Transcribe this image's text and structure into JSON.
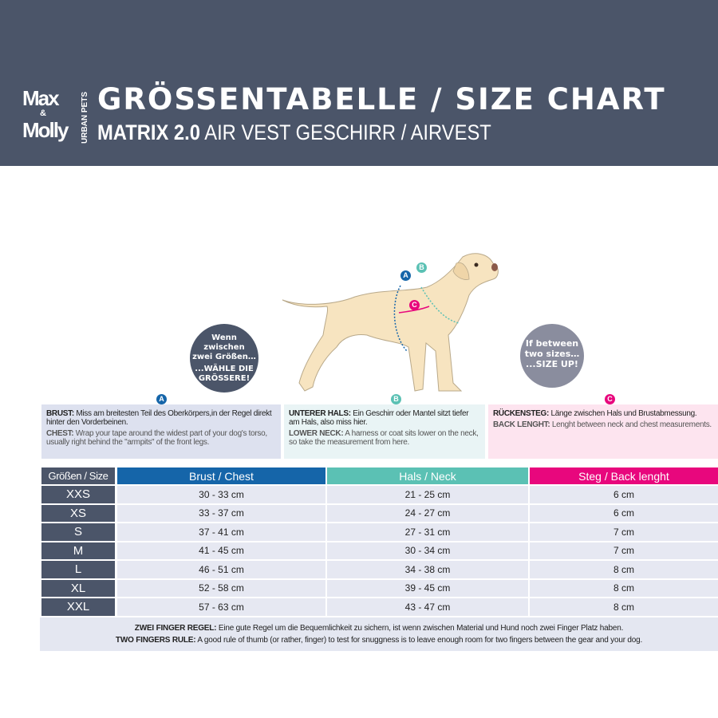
{
  "header": {
    "logo": {
      "line1": "Max",
      "amp": "&",
      "line2": "Molly",
      "tagline": "URBAN PETS"
    },
    "title": "GRÖSSENTABELLE / SIZE CHART",
    "subtitle_bold": "MATRIX 2.0",
    "subtitle_rest": " AIR VEST GESCHIRR / AIRVEST"
  },
  "bubbles": {
    "de": {
      "line1": "Wenn",
      "line2": "zwischen",
      "line3": "zwei Größen…",
      "line4": "...WÄHLE DIE",
      "line5": "GRÖSSERE!"
    },
    "en": {
      "line1": "If between",
      "line2": "two sizes…",
      "line3": "...SIZE UP!"
    }
  },
  "diagram": {
    "labels": [
      "A",
      "B",
      "C"
    ]
  },
  "colors": {
    "header": "#4b5569",
    "chest": "#1565a9",
    "neck": "#5bc1b4",
    "back": "#e8077d",
    "dog": "#f7e4c0"
  },
  "info": [
    {
      "badge": "A",
      "de_label": "BRUST:",
      "de_text": " Miss am breitesten Teil des Oberkörpers,in der Regel direkt hinter den Vorderbeinen.",
      "en_label": "CHEST:",
      "en_text": " Wrap your tape around the widest part of your dog's torso, usually right behind the \"armpits\" of the front legs."
    },
    {
      "badge": "B",
      "de_label": "UNTERER HALS:",
      "de_text": " Ein Geschirr oder Mantel sitzt tiefer am Hals, also miss hier.",
      "en_label": "LOWER NECK:",
      "en_text": " A harness or coat sits lower on the neck, so take the measurement from here."
    },
    {
      "badge": "C",
      "de_label": "RÜCKENSTEG:",
      "de_text": " Länge zwischen Hals und Brustabmessung.",
      "en_label": "BACK LENGHT:",
      "en_text": " Lenght between neck and chest measurements."
    }
  ],
  "table": {
    "headers": [
      "Größen / Size",
      "Brust / Chest",
      "Hals / Neck",
      "Steg / Back lenght"
    ],
    "rows": [
      [
        "XXS",
        "30 - 33 cm",
        "21 - 25 cm",
        "6 cm"
      ],
      [
        "XS",
        "33 - 37 cm",
        "24 - 27 cm",
        "6 cm"
      ],
      [
        "S",
        "37 - 41 cm",
        "27 - 31 cm",
        "7 cm"
      ],
      [
        "M",
        "41 - 45 cm",
        "30 - 34 cm",
        "7 cm"
      ],
      [
        "L",
        "46 - 51 cm",
        "34 - 38 cm",
        "8 cm"
      ],
      [
        "XL",
        "52 - 58 cm",
        "39 - 45 cm",
        "8 cm"
      ],
      [
        "XXL",
        "57 - 63 cm",
        "43 - 47 cm",
        "8 cm"
      ]
    ]
  },
  "footer": {
    "de_label": "ZWEI FINGER REGEL:",
    "de_text": " Eine gute Regel um die Bequemlichkeit zu sichern, ist wenn zwischen Material und Hund noch zwei Finger Platz haben.",
    "en_label": "TWO FINGERS RULE:",
    "en_text": " A good rule of thumb (or rather, finger) to test for snuggness is to leave enough room for two fingers between the gear and your dog."
  }
}
